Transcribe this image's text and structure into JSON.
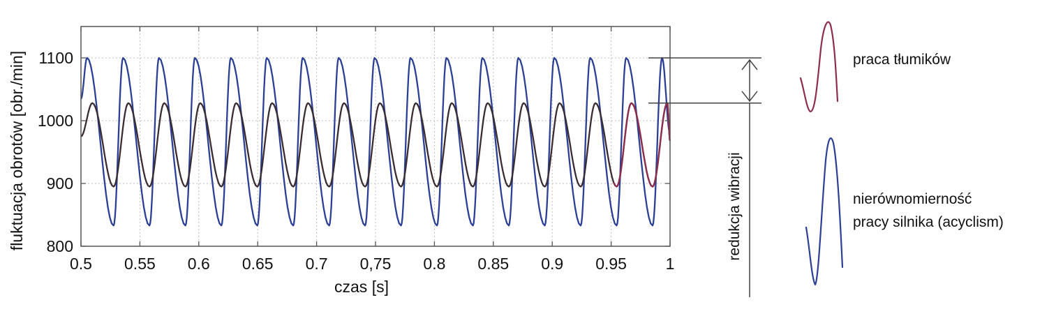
{
  "chart_data": {
    "type": "line",
    "xlabel": "czas [s]",
    "ylabel": "fluktuacja obrotów [obr./min]",
    "xlim": [
      0.5,
      1.0
    ],
    "ylim": [
      800,
      1150
    ],
    "grid": true,
    "x_ticks": [
      "0.5",
      "0.55",
      "0.6",
      "0.65",
      "0.7",
      "0,75",
      "0.8",
      "0.85",
      "0.9",
      "0.95",
      "1"
    ],
    "y_ticks": [
      "800",
      "900",
      "1000",
      "1100"
    ],
    "period_s": 0.0305,
    "series": [
      {
        "id": "acyclism",
        "color": "#2b3f95",
        "max": 1100,
        "min": 833,
        "start": 1035,
        "peak_times": [
          0.5052,
          0.5357,
          0.5662,
          0.5967,
          0.6272,
          0.6577,
          0.6882,
          0.7187,
          0.7492,
          0.7797,
          0.8102,
          0.8407,
          0.8712,
          0.9017,
          0.9322,
          0.9627,
          0.9932
        ],
        "trough_times": [
          0.5277,
          0.5582,
          0.5887,
          0.6192,
          0.6497,
          0.6802,
          0.7107,
          0.7412,
          0.7717,
          0.8022,
          0.8327,
          0.8632,
          0.8937,
          0.9242,
          0.9547,
          0.9852
        ]
      },
      {
        "id": "damped",
        "color": "#3a2c33",
        "highlight_color": "#8e2d4e",
        "max": 1028,
        "min": 895,
        "start": 975,
        "peak_times": [
          0.5097,
          0.5402,
          0.5707,
          0.6012,
          0.6317,
          0.6622,
          0.6927,
          0.7232,
          0.7537,
          0.7842,
          0.8147,
          0.8452,
          0.8757,
          0.9062,
          0.9367,
          0.9672,
          0.9977
        ],
        "trough_times": [
          0.5277,
          0.5582,
          0.5887,
          0.6192,
          0.6497,
          0.6802,
          0.7107,
          0.7412,
          0.7717,
          0.8022,
          0.8327,
          0.8632,
          0.8937,
          0.9242,
          0.9547,
          0.9852
        ]
      }
    ],
    "annotation": {
      "text": "redukcja wibracji",
      "upper_level": 1100,
      "lower_level": 1028
    },
    "legend": {
      "placement": "right",
      "entries": [
        {
          "series": "damped",
          "label": "praca tłumików"
        },
        {
          "series": "acyclism",
          "label_lines": [
            "nierównomierność",
            "pracy silnika (acyclism)"
          ]
        }
      ]
    }
  }
}
